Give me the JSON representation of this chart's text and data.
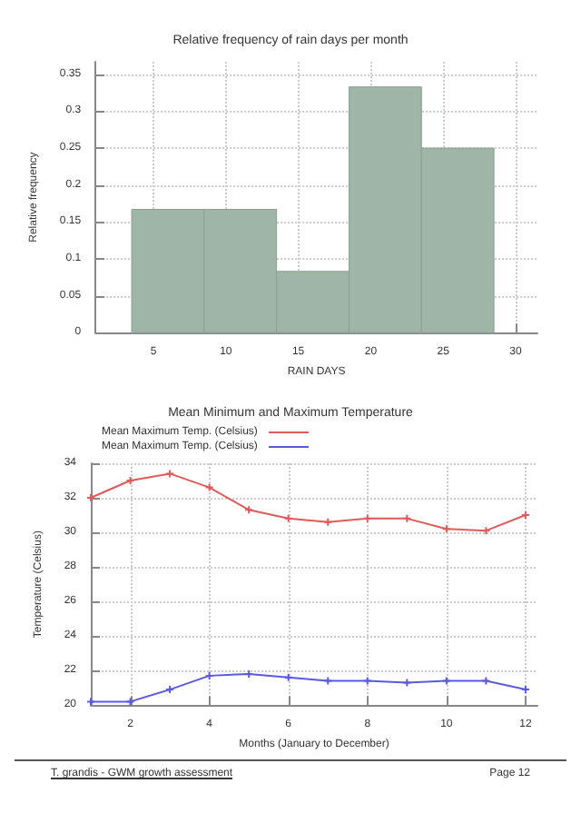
{
  "chart_data": [
    {
      "type": "histogram",
      "title": "Relative frequency of rain days per month",
      "xlabel": "RAIN DAYS",
      "ylabel": "Relative frequency",
      "bins": [
        3.5,
        8.5,
        13.5,
        18.5,
        23.5,
        28.5
      ],
      "values": [
        0.167,
        0.167,
        0.083,
        0.333,
        0.25
      ],
      "color": "#9fb5a7",
      "xlim": [
        1,
        31.5
      ],
      "xticks": [
        5,
        10,
        15,
        20,
        25,
        30
      ],
      "ylim": [
        0,
        0.367
      ],
      "yticks": [
        0,
        0.05,
        0.1,
        0.15,
        0.2,
        0.25,
        0.3,
        0.35
      ],
      "grid": true
    },
    {
      "type": "line",
      "title": "Mean Minimum and Maximum Temperature",
      "xlabel": "Months (January to December)",
      "ylabel": "Temperature (Celsius)",
      "x": [
        1,
        2,
        3,
        4,
        5,
        6,
        7,
        8,
        9,
        10,
        11,
        12
      ],
      "series": [
        {
          "name": "Mean Maximum Temp. (Celsius)",
          "color": "#e05a5a",
          "values": [
            32.0,
            33.0,
            33.4,
            32.6,
            31.3,
            30.8,
            30.6,
            30.8,
            30.8,
            30.2,
            30.1,
            31.0
          ]
        },
        {
          "name": "Mean Maximum Temp. (Celsius)",
          "color": "#5a5ae0",
          "values": [
            20.2,
            20.2,
            20.9,
            21.7,
            21.8,
            21.6,
            21.4,
            21.4,
            21.3,
            21.4,
            21.4,
            20.9
          ]
        }
      ],
      "xlim": [
        1,
        12.3
      ],
      "xticks": [
        2,
        4,
        6,
        8,
        10,
        12
      ],
      "ylim": [
        20,
        34
      ],
      "yticks": [
        20,
        22,
        24,
        26,
        28,
        30,
        32,
        34
      ],
      "grid": true,
      "legend": "top left",
      "marker": "cross",
      "line_style": "solid",
      "annotations": [
        "T. grandis - GWM growth assessment",
        "Page 12"
      ]
    }
  ]
}
